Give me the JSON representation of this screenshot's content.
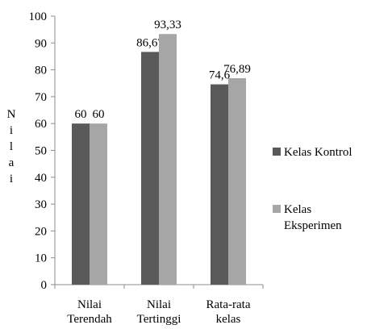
{
  "chart_data": {
    "type": "bar",
    "categories": [
      [
        "Nilai",
        "Terendah"
      ],
      [
        "Nilai",
        "Tertinggi"
      ],
      [
        "Rata-rata",
        "kelas"
      ]
    ],
    "series": [
      {
        "name": "Kelas Kontrol",
        "values": [
          60,
          86.67,
          74.6
        ],
        "labels": [
          "60",
          "86,67",
          "74,6"
        ],
        "color": "#595959"
      },
      {
        "name": "Kelas Eksperimen",
        "values": [
          60,
          93.33,
          76.89
        ],
        "labels": [
          "60",
          "93,33",
          "76,89"
        ],
        "color": "#a6a6a6"
      }
    ],
    "legend_entries": [
      [
        "Kelas Kontrol"
      ],
      [
        "Kelas",
        "Eksperimen"
      ]
    ],
    "ylabel_letters": [
      "N",
      "i",
      "l",
      "a",
      "i"
    ],
    "ylim": [
      0,
      100
    ],
    "yticks": [
      0,
      10,
      20,
      30,
      40,
      50,
      60,
      70,
      80,
      90,
      100
    ],
    "grid": false,
    "legend_position": "right"
  }
}
